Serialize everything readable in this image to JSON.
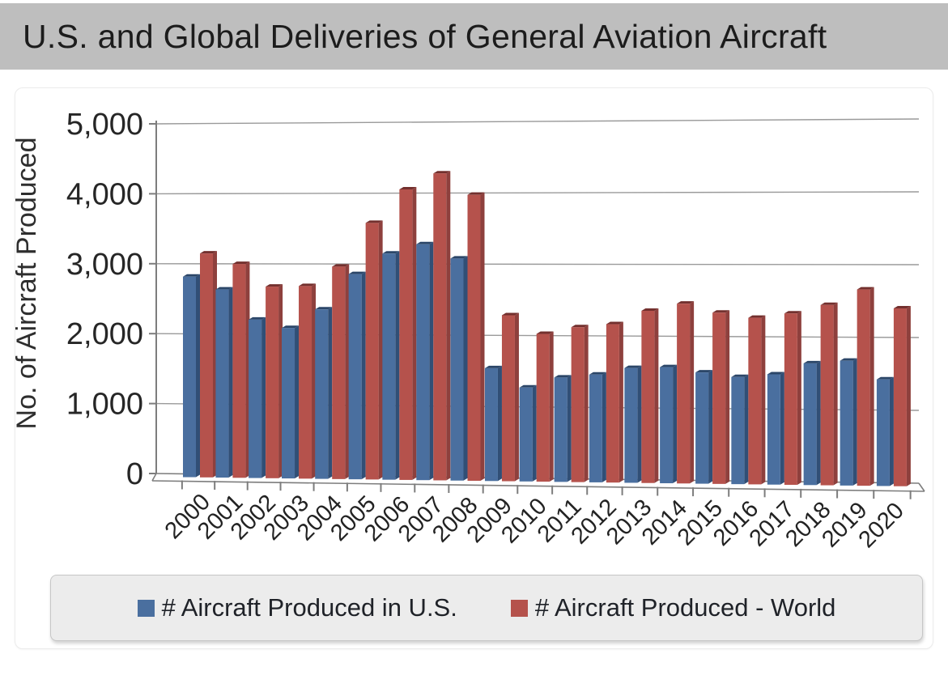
{
  "header": {
    "title": "U.S. and Global Deliveries of General Aviation Aircraft",
    "bg_color": "#bebebe",
    "text_color": "#1c1c1c"
  },
  "chart_data": {
    "type": "bar",
    "style": "3d-clustered-column",
    "title": "",
    "xlabel": "",
    "ylabel": "No. of Aircraft Produced",
    "ylim": [
      0,
      5000
    ],
    "ytick_values": [
      0,
      1000,
      2000,
      3000,
      4000,
      5000
    ],
    "ytick_labels": [
      "0",
      "1,000",
      "2,000",
      "3,000",
      "4,000",
      "5,000"
    ],
    "grid": true,
    "gridline_color": "#9a9a9a",
    "axis_color": "#7d7d7d",
    "legend_position": "bottom",
    "categories": [
      "2000",
      "2001",
      "2002",
      "2003",
      "2004",
      "2005",
      "2006",
      "2007",
      "2008",
      "2009",
      "2010",
      "2011",
      "2012",
      "2013",
      "2014",
      "2015",
      "2016",
      "2017",
      "2018",
      "2019",
      "2020"
    ],
    "series": [
      {
        "key": "us",
        "name": "# Aircraft Produced in U.S.",
        "color": "#4a6f9f",
        "side_color": "#314f76",
        "top_color": "#2b4668",
        "values": [
          2816,
          2634,
          2207,
          2090,
          2355,
          2857,
          3147,
          3279,
          3079,
          1539,
          1271,
          1415,
          1460,
          1555,
          1570,
          1500,
          1440,
          1481,
          1636,
          1675,
          1421
        ]
      },
      {
        "key": "world",
        "name": "# Aircraft Produced - World",
        "color": "#b5524c",
        "side_color": "#8e403d",
        "top_color": "#73302e",
        "values": [
          3147,
          2998,
          2677,
          2686,
          2963,
          3580,
          4053,
          4277,
          3974,
          2283,
          2024,
          2120,
          2164,
          2353,
          2454,
          2331,
          2262,
          2324,
          2443,
          2658,
          2399
        ]
      }
    ]
  },
  "legend": {
    "bg_color": "#ececec",
    "border_color": "#c6c6c6"
  }
}
